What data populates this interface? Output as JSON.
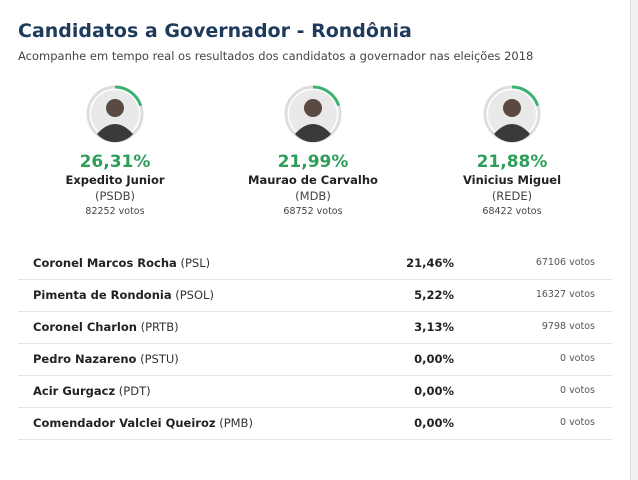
{
  "header": {
    "title": "Candidatos a Governador - Rondônia",
    "subtitle": "Acompanhe em tempo real os resultados dos candidatos a governador nas eleições 2018"
  },
  "leaders": [
    {
      "percent": "26,31%",
      "name": "Expedito Junior",
      "party": "(PSDB)",
      "votes": "82252 votos"
    },
    {
      "percent": "21,99%",
      "name": "Maurao de Carvalho",
      "party": "(MDB)",
      "votes": "68752 votos"
    },
    {
      "percent": "21,88%",
      "name": "Vinicius Miguel",
      "party": "(REDE)",
      "votes": "68422 votos"
    }
  ],
  "table": {
    "rows": [
      {
        "name": "Coronel Marcos Rocha",
        "party": "(PSL)",
        "percent": "21,46%",
        "votes": "67106 votos"
      },
      {
        "name": "Pimenta de Rondonia",
        "party": "(PSOL)",
        "percent": "5,22%",
        "votes": "16327 votos"
      },
      {
        "name": "Coronel Charlon",
        "party": "(PRTB)",
        "percent": "3,13%",
        "votes": "9798 votos"
      },
      {
        "name": "Pedro Nazareno",
        "party": "(PSTU)",
        "percent": "0,00%",
        "votes": "0 votos"
      },
      {
        "name": "Acir Gurgacz",
        "party": "(PDT)",
        "percent": "0,00%",
        "votes": "0 votos"
      },
      {
        "name": "Comendador Valclei Queiroz",
        "party": "(PMB)",
        "percent": "0,00%",
        "votes": "0 votos"
      }
    ]
  }
}
